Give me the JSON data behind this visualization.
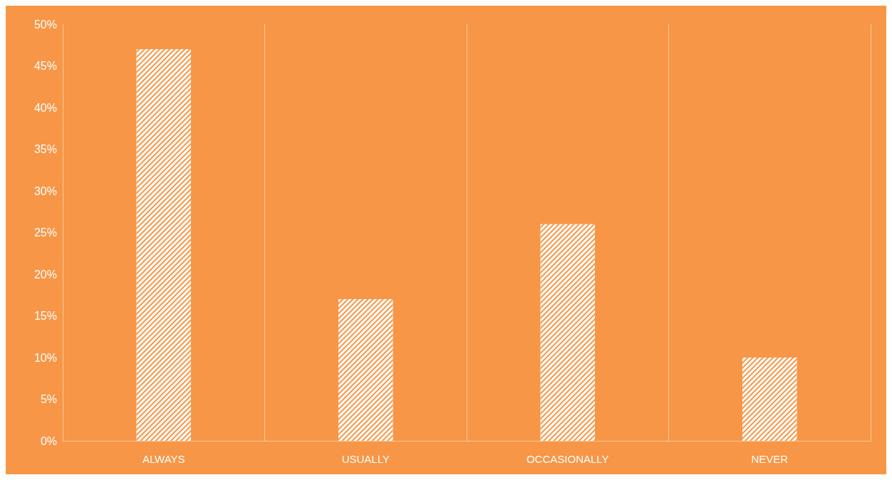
{
  "chart_data": {
    "type": "bar",
    "categories": [
      "ALWAYS",
      "USUALLY",
      "OCCASIONALLY",
      "NEVER"
    ],
    "values": [
      47,
      17,
      26,
      10
    ],
    "color": "#ffffff",
    "ylim": [
      0,
      50
    ],
    "yticks": [
      {
        "value": 0,
        "label": "0%"
      },
      {
        "value": 5,
        "label": "5%"
      },
      {
        "value": 10,
        "label": "10%"
      },
      {
        "value": 15,
        "label": "15%"
      },
      {
        "value": 20,
        "label": "20%"
      },
      {
        "value": 25,
        "label": "25%"
      },
      {
        "value": 30,
        "label": "30%"
      },
      {
        "value": 35,
        "label": "35%"
      },
      {
        "value": 40,
        "label": "40%"
      },
      {
        "value": 45,
        "label": "45%"
      },
      {
        "value": 50,
        "label": "50%"
      }
    ],
    "grid": "x"
  }
}
